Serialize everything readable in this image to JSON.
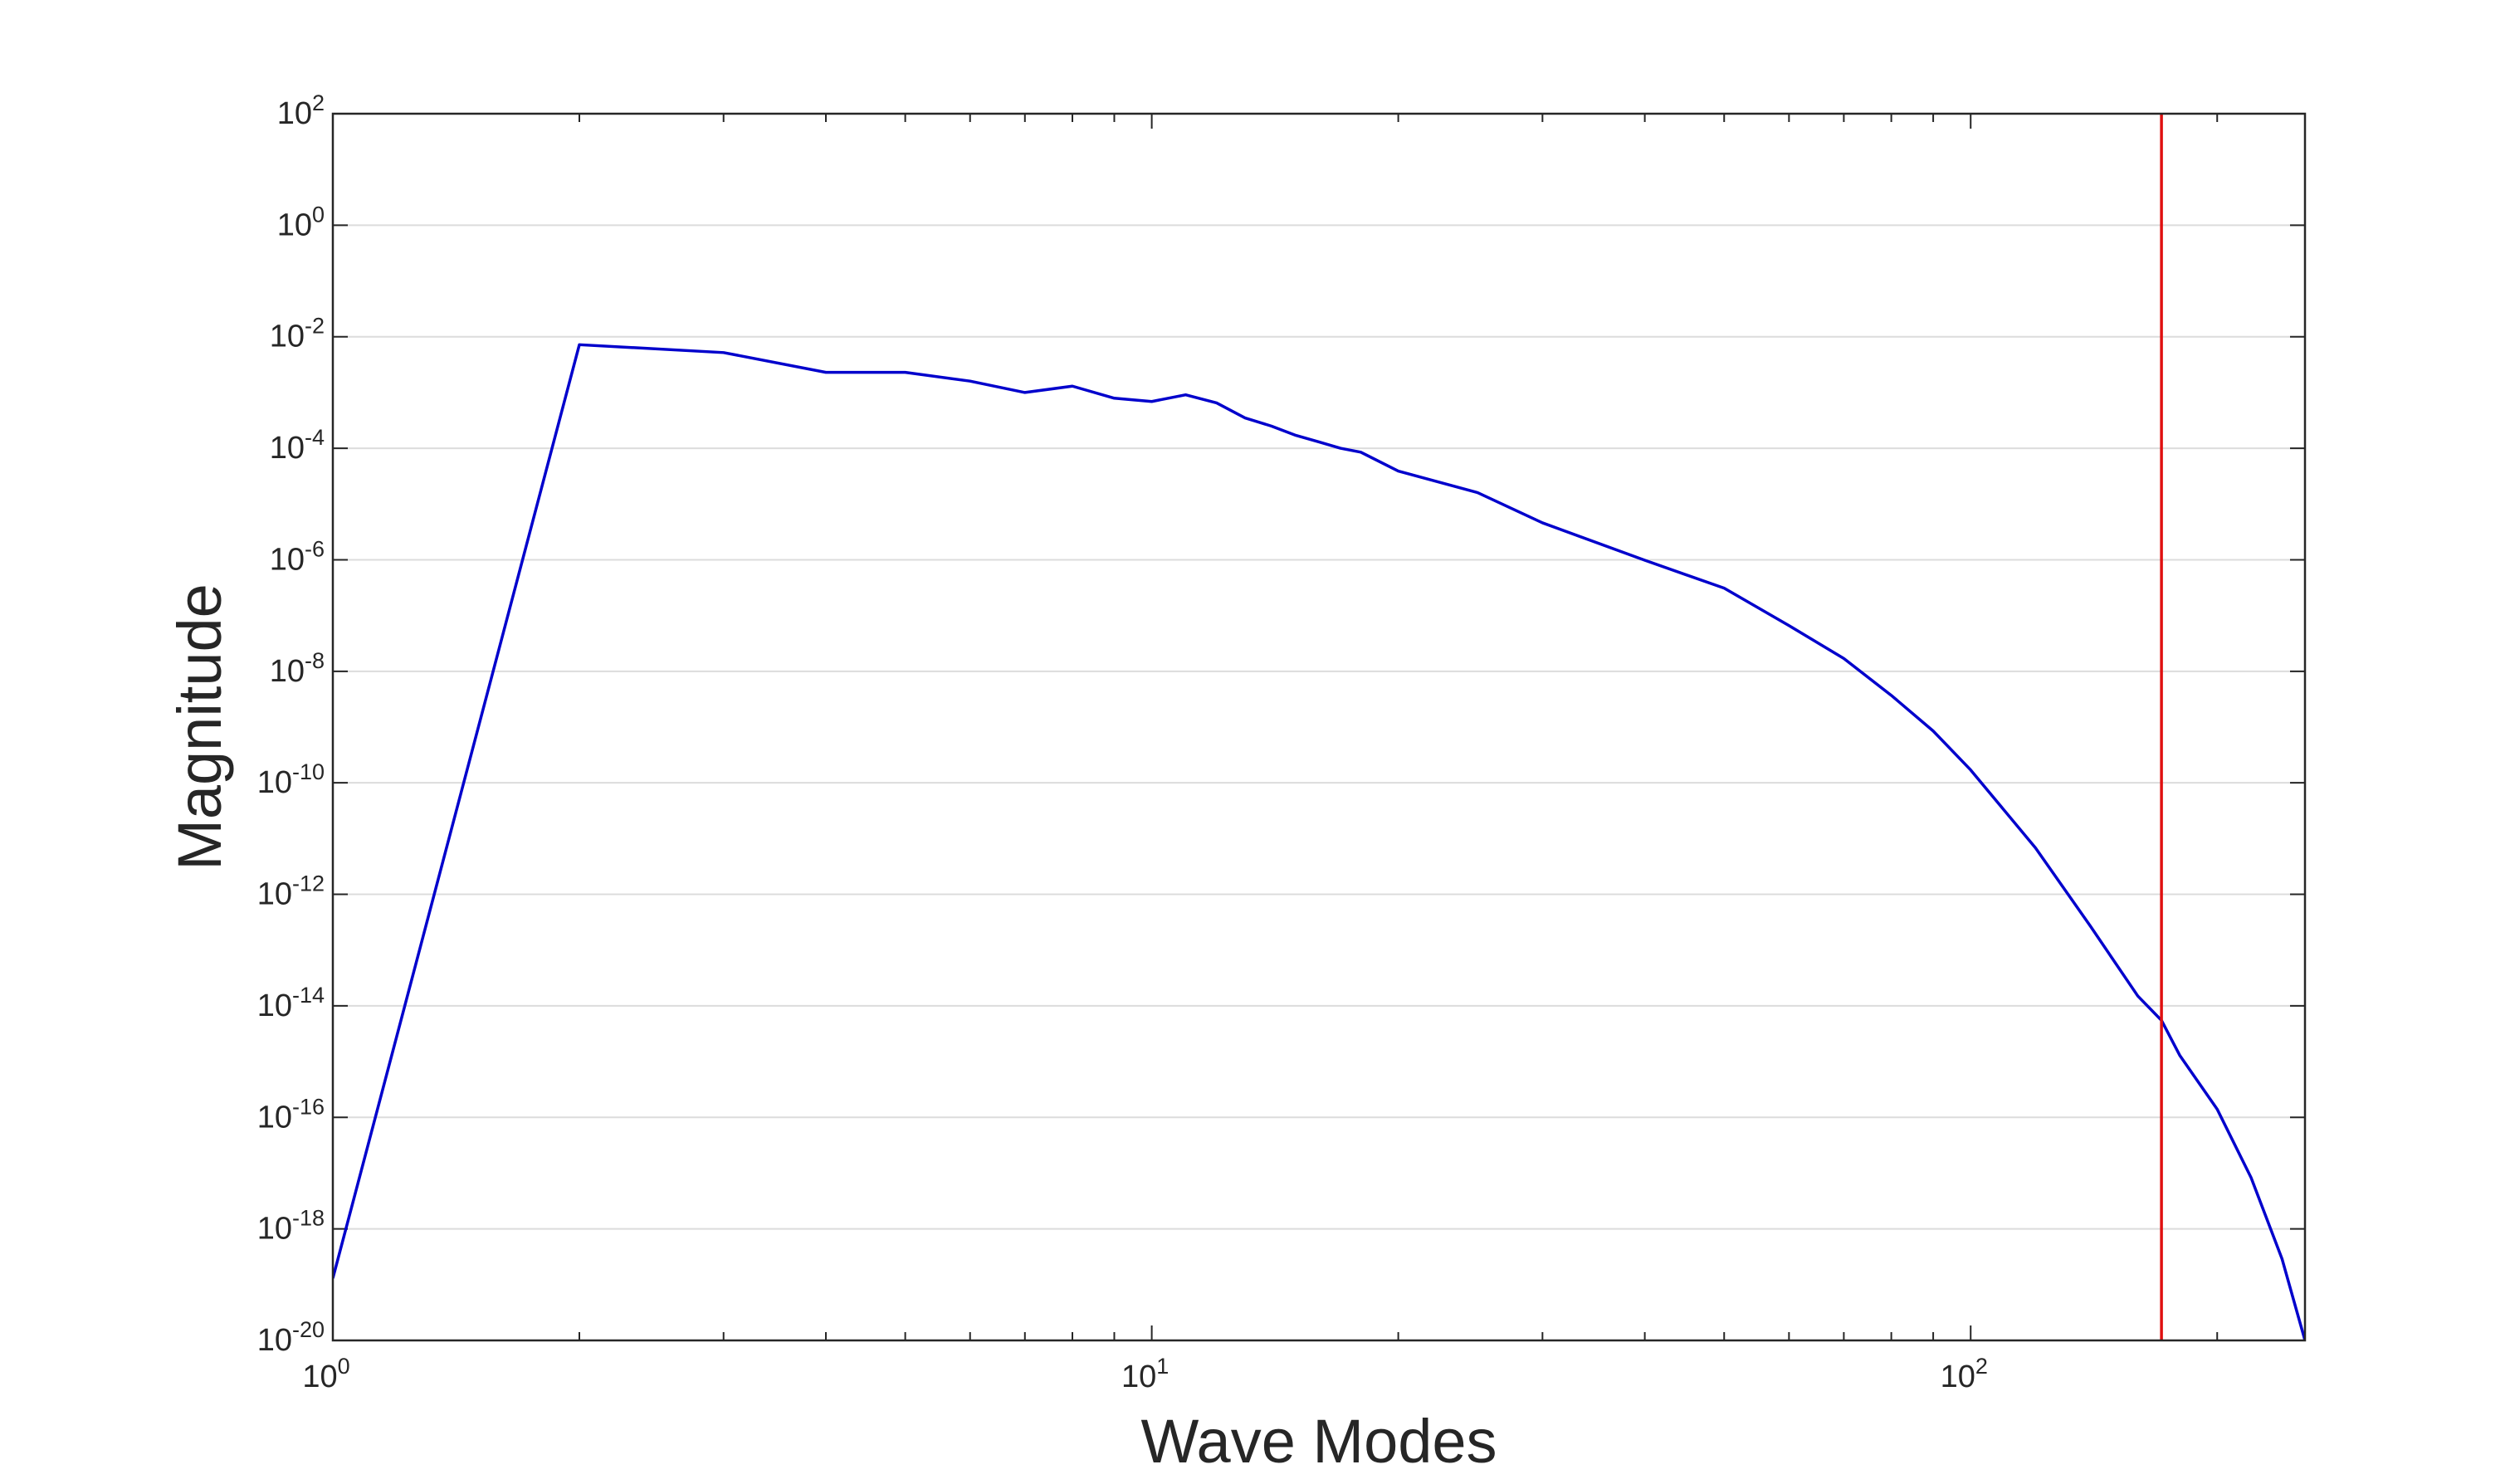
{
  "chart_data": {
    "type": "line",
    "xlabel": "Wave Modes",
    "ylabel": "Magnitude",
    "xscale": "log",
    "yscale": "log",
    "xlim": [
      1,
      256
    ],
    "ylim": [
      1e-20,
      100
    ],
    "xticks": [
      {
        "value": 1,
        "label": {
          "base": "10",
          "exponent": "0"
        }
      },
      {
        "value": 10,
        "label": {
          "base": "10",
          "exponent": "1"
        }
      },
      {
        "value": 100,
        "label": {
          "base": "10",
          "exponent": "2"
        }
      }
    ],
    "xminorticks": [
      2,
      3,
      4,
      5,
      6,
      7,
      8,
      9,
      20,
      30,
      40,
      50,
      60,
      70,
      80,
      90,
      200
    ],
    "yticks": [
      {
        "value": 1e-20,
        "label": {
          "base": "10",
          "exponent": "-20"
        }
      },
      {
        "value": 1e-18,
        "label": {
          "base": "10",
          "exponent": "-18"
        }
      },
      {
        "value": 1e-16,
        "label": {
          "base": "10",
          "exponent": "-16"
        }
      },
      {
        "value": 1e-14,
        "label": {
          "base": "10",
          "exponent": "-14"
        }
      },
      {
        "value": 1e-12,
        "label": {
          "base": "10",
          "exponent": "-12"
        }
      },
      {
        "value": 1e-10,
        "label": {
          "base": "10",
          "exponent": "-10"
        }
      },
      {
        "value": 1e-08,
        "label": {
          "base": "10",
          "exponent": "-8"
        }
      },
      {
        "value": 1e-06,
        "label": {
          "base": "10",
          "exponent": "-6"
        }
      },
      {
        "value": 0.0001,
        "label": {
          "base": "10",
          "exponent": "-4"
        }
      },
      {
        "value": 0.01,
        "label": {
          "base": "10",
          "exponent": "-2"
        }
      },
      {
        "value": 1,
        "label": {
          "base": "10",
          "exponent": "0"
        }
      },
      {
        "value": 100,
        "label": {
          "base": "10",
          "exponent": "2"
        }
      }
    ],
    "grid": "y",
    "x": [
      1,
      2,
      3,
      4,
      5,
      6,
      7,
      8,
      9,
      10,
      11,
      12,
      13,
      14,
      15,
      16,
      17,
      18,
      20,
      25,
      30,
      40,
      50,
      60,
      70,
      80,
      90,
      100,
      120,
      140,
      160,
      171,
      180,
      200,
      220,
      240,
      256
    ],
    "series": [
      {
        "color": "#0000cc",
        "values": [
          1.3e-19,
          0.0072,
          0.0052,
          0.0023,
          0.0023,
          0.0016,
          0.001,
          0.0013,
          0.00079,
          0.00069,
          0.00091,
          0.00065,
          0.00035,
          0.00025,
          0.00017,
          0.00013,
          0.0001,
          8.5e-05,
          3.9e-05,
          1.6e-05,
          4.6e-06,
          9.8e-07,
          3.1e-07,
          6.6e-08,
          1.7e-08,
          3.7e-09,
          8.5e-10,
          1.7e-10,
          6.8e-12,
          2.7e-13,
          1.5e-14,
          5.5e-15,
          1.3e-15,
          1.4e-16,
          8.3e-18,
          2.9e-19,
          1e-20
        ]
      }
    ],
    "vline": {
      "x": 171,
      "color": "#e01010"
    }
  }
}
